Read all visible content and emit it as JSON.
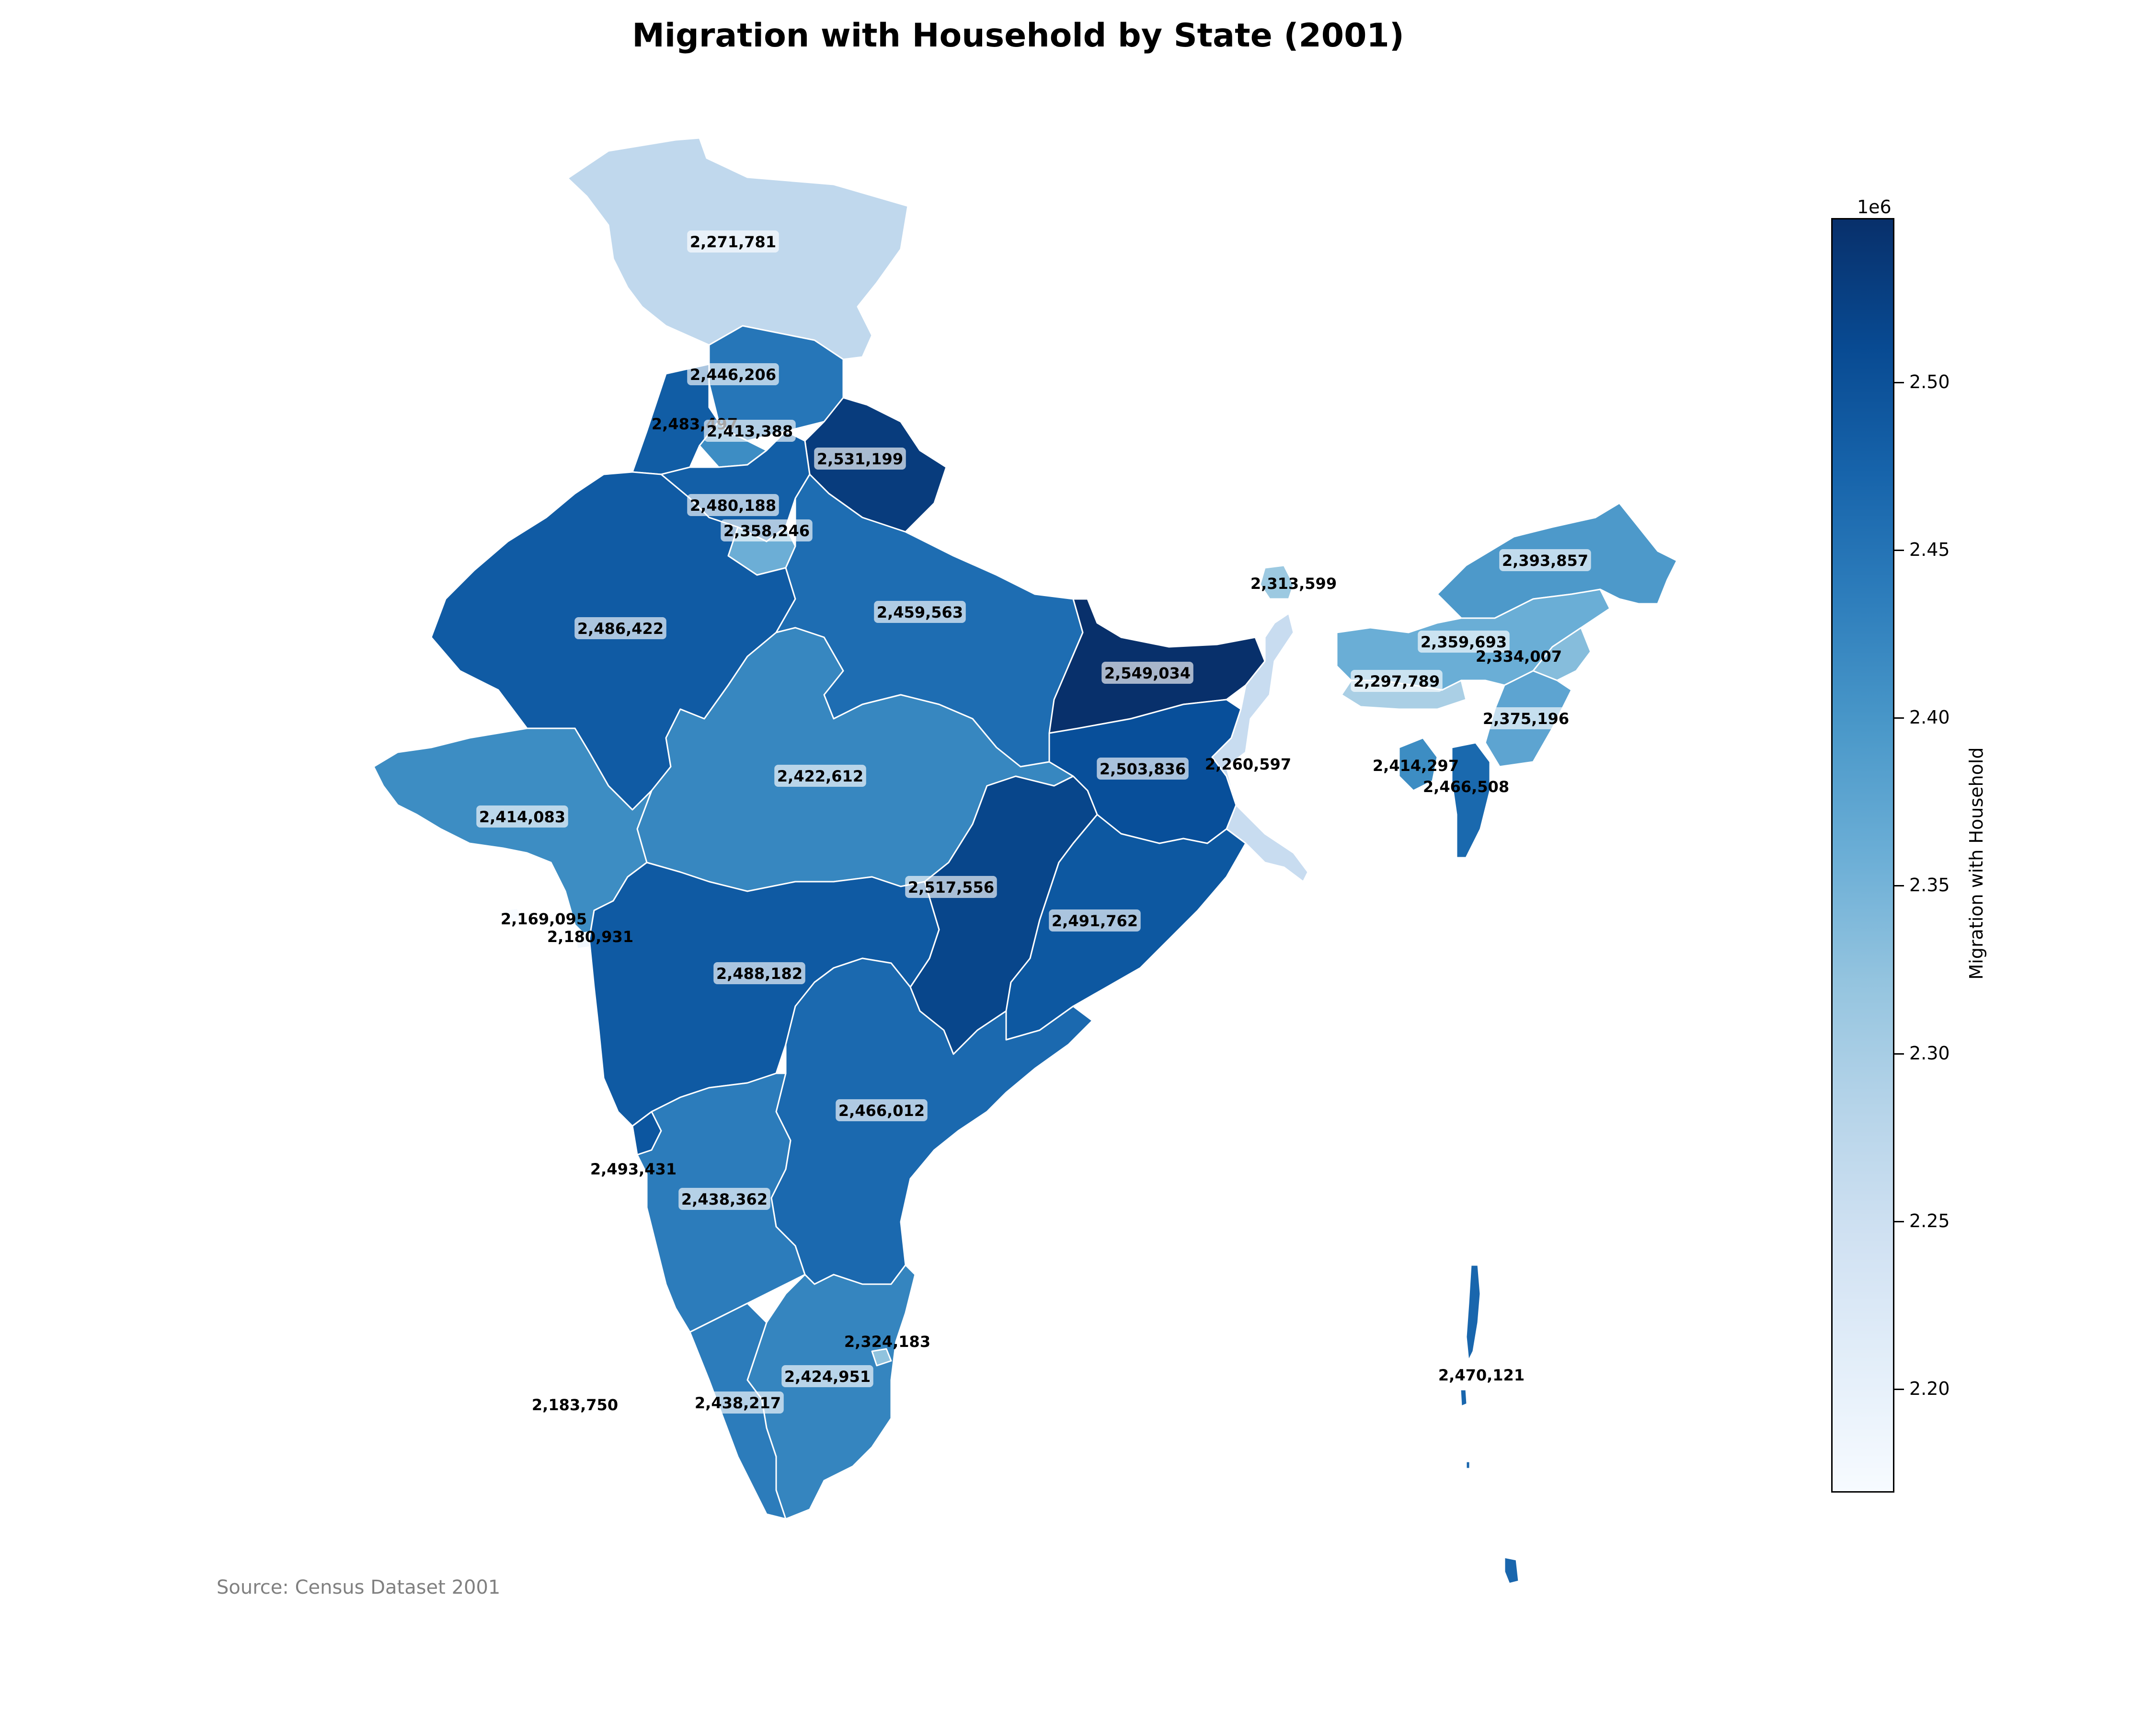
{
  "title": "Migration with Household by State (2001)",
  "source": "Source: Census Dataset 2001",
  "colorbar": {
    "label": "Migration with Household",
    "exponent": "1e6",
    "min": 2169095,
    "max": 2549034,
    "colormap": "Blues",
    "ticks": [
      2.2,
      2.25,
      2.3,
      2.35,
      2.4,
      2.45,
      2.5
    ],
    "tick_labels": [
      "2.20",
      "2.25",
      "2.30",
      "2.35",
      "2.40",
      "2.45",
      "2.50"
    ]
  },
  "chart_data": {
    "type": "choropleth",
    "title": "Migration with Household by State (2001)",
    "value_label": "Migration with Household",
    "regions": [
      {
        "label": "2,271,781",
        "value": 2271781
      },
      {
        "label": "2,446,206",
        "value": 2446206
      },
      {
        "label": "2,483,497",
        "value": 2483497
      },
      {
        "label": "2,413,388",
        "value": 2413388
      },
      {
        "label": "2,531,199",
        "value": 2531199
      },
      {
        "label": "2,480,188",
        "value": 2480188
      },
      {
        "label": "2,358,246",
        "value": 2358246
      },
      {
        "label": "2,486,422",
        "value": 2486422
      },
      {
        "label": "2,459,563",
        "value": 2459563
      },
      {
        "label": "2,549,034",
        "value": 2549034
      },
      {
        "label": "2,313,599",
        "value": 2313599
      },
      {
        "label": "2,393,857",
        "value": 2393857
      },
      {
        "label": "2,359,693",
        "value": 2359693
      },
      {
        "label": "2,334,007",
        "value": 2334007
      },
      {
        "label": "2,297,789",
        "value": 2297789
      },
      {
        "label": "2,375,196",
        "value": 2375196
      },
      {
        "label": "2,503,836",
        "value": 2503836
      },
      {
        "label": "2,260,597",
        "value": 2260597
      },
      {
        "label": "2,414,297",
        "value": 2414297
      },
      {
        "label": "2,466,508",
        "value": 2466508
      },
      {
        "label": "2,422,612",
        "value": 2422612
      },
      {
        "label": "2,414,083",
        "value": 2414083
      },
      {
        "label": "2,517,556",
        "value": 2517556
      },
      {
        "label": "2,491,762",
        "value": 2491762
      },
      {
        "label": "2,169,095",
        "value": 2169095
      },
      {
        "label": "2,180,931",
        "value": 2180931
      },
      {
        "label": "2,488,182",
        "value": 2488182
      },
      {
        "label": "2,466,012",
        "value": 2466012
      },
      {
        "label": "2,493,431",
        "value": 2493431
      },
      {
        "label": "2,438,362",
        "value": 2438362
      },
      {
        "label": "2,324,183",
        "value": 2324183
      },
      {
        "label": "2,424,951",
        "value": 2424951
      },
      {
        "label": "2,470,121",
        "value": 2470121
      },
      {
        "label": "2,183,750",
        "value": 2183750
      },
      {
        "label": "2,438,217",
        "value": 2438217
      }
    ]
  }
}
